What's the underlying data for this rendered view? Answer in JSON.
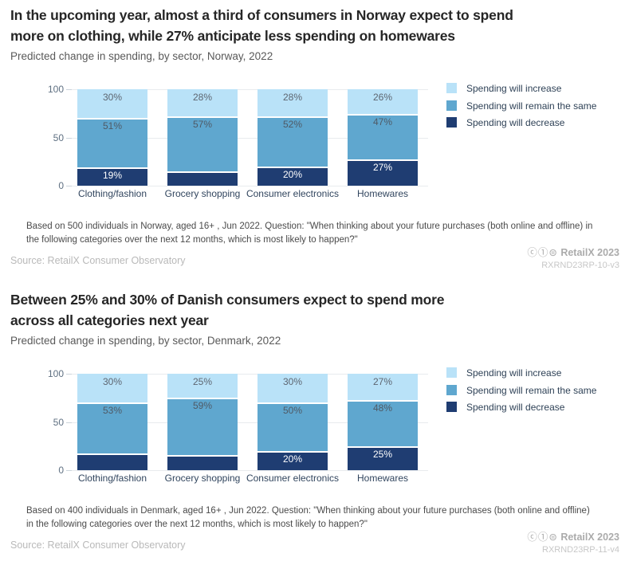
{
  "chart_data": [
    {
      "type": "bar",
      "stacked": true,
      "title_lines": [
        "In the upcoming year, almost a third of consumers in Norway expect to spend",
        "more on clothing, while 27% anticipate less spending on homewares"
      ],
      "subtitle": "Predicted change in spending, by sector, Norway, 2022",
      "categories": [
        "Clothing/fashion",
        "Grocery shopping",
        "Consumer electronics",
        "Homewares"
      ],
      "ylim": [
        0,
        100
      ],
      "y_ticks": [
        0,
        50,
        100
      ],
      "grid": true,
      "legend_position": "right",
      "series": [
        {
          "name": "Spending will increase",
          "color": "#b9e2f8",
          "label_color": "#5d6570",
          "values": [
            30,
            28,
            28,
            26
          ],
          "labels": [
            "30%",
            "28%",
            "28%",
            "26%"
          ]
        },
        {
          "name": "Spending will remain the same",
          "color": "#5fa7cf",
          "label_color": "#4f5a66",
          "values": [
            51,
            57,
            52,
            47
          ],
          "labels": [
            "51%",
            "57%",
            "52%",
            "47%"
          ]
        },
        {
          "name": "Spending will decrease",
          "color": "#1f3d72",
          "label_color": "#ffffff",
          "values": [
            19,
            15,
            20,
            27
          ],
          "labels": [
            "19%",
            "",
            "20%",
            "27%"
          ]
        }
      ],
      "footnote": "Based on 500 individuals in Norway, aged 16+ , Jun 2022. Question: \"When thinking about your future purchases (both online and offline) in the following categories over the next 12 months, which is most likely to happen?\"",
      "source": "Source: RetailX Consumer Observatory",
      "brand_icons": "ⓒ①⊜",
      "brand": "RetailX 2023",
      "code": "RXRND23RP-10-v3"
    },
    {
      "type": "bar",
      "stacked": true,
      "title_lines": [
        "Between 25% and 30% of Danish consumers expect to spend more",
        "across all categories next year"
      ],
      "subtitle": "Predicted change in spending, by sector, Denmark, 2022",
      "categories": [
        "Clothing/fashion",
        "Grocery shopping",
        "Consumer electronics",
        "Homewares"
      ],
      "ylim": [
        0,
        100
      ],
      "y_ticks": [
        0,
        50,
        100
      ],
      "grid": true,
      "legend_position": "right",
      "series": [
        {
          "name": "Spending will increase",
          "color": "#b9e2f8",
          "label_color": "#5d6570",
          "values": [
            30,
            25,
            30,
            27
          ],
          "labels": [
            "30%",
            "25%",
            "30%",
            "27%"
          ]
        },
        {
          "name": "Spending will remain the same",
          "color": "#5fa7cf",
          "label_color": "#4f5a66",
          "values": [
            53,
            59,
            50,
            48
          ],
          "labels": [
            "53%",
            "59%",
            "50%",
            "48%"
          ]
        },
        {
          "name": "Spending will decrease",
          "color": "#1f3d72",
          "label_color": "#ffffff",
          "values": [
            17,
            16,
            20,
            25
          ],
          "labels": [
            "",
            "",
            "20%",
            "25%"
          ]
        }
      ],
      "footnote": "Based on 400 individuals in Denmark, aged 16+ , Jun 2022. Question: \"When thinking about your future purchases (both online and offline) in the following categories over the next 12 months, which is most likely to happen?\"",
      "source": "Source: RetailX Consumer Observatory",
      "brand_icons": "ⓒ①⊜",
      "brand": "RetailX 2023",
      "code": "RXRND23RP-11-v4"
    }
  ]
}
